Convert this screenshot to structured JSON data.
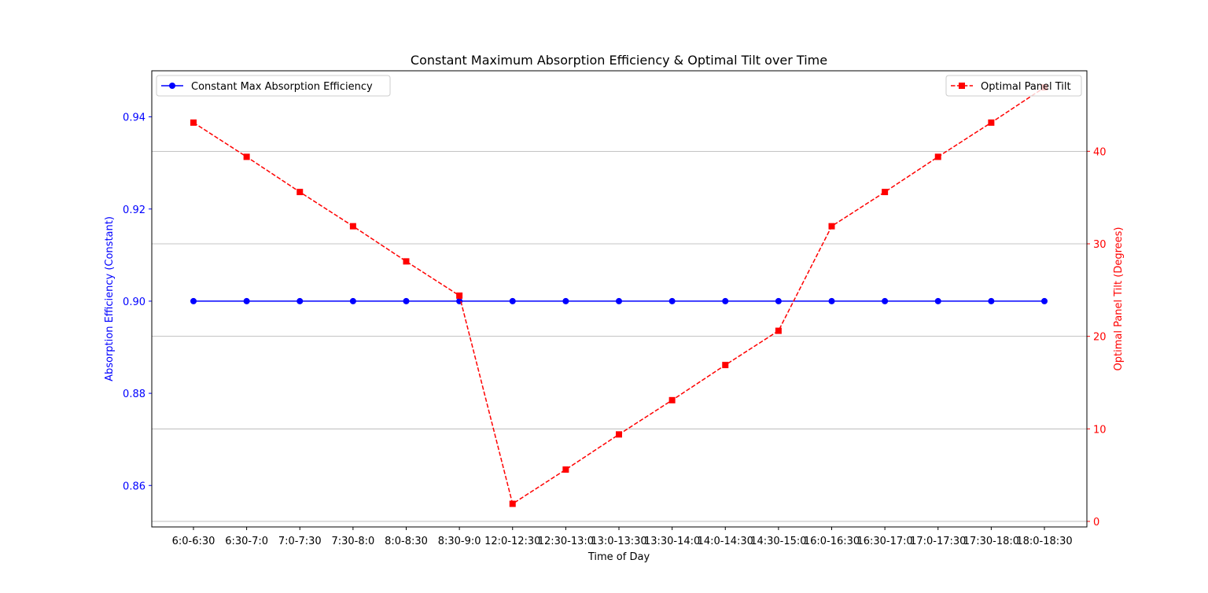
{
  "chart_data": {
    "type": "line",
    "title": "Constant Maximum Absorption Efficiency & Optimal Tilt over Time",
    "xlabel": "Time of Day",
    "categories": [
      "6:0-6:30",
      "6:30-7:0",
      "7:0-7:30",
      "7:30-8:0",
      "8:0-8:30",
      "8:30-9:0",
      "12:0-12:30",
      "12:30-13:0",
      "13:0-13:30",
      "13:30-14:0",
      "14:0-14:30",
      "14:30-15:0",
      "16:0-16:30",
      "16:30-17:0",
      "17:0-17:30",
      "17:30-18:0",
      "18:0-18:30"
    ],
    "y_left": {
      "label": "Absorption Efficiency (Constant)",
      "lim": [
        0.851,
        0.95
      ],
      "ticks": [
        0.86,
        0.88,
        0.9,
        0.92,
        0.94
      ],
      "tick_labels": [
        "0.86",
        "0.88",
        "0.90",
        "0.92",
        "0.94"
      ],
      "color": "#0000ff"
    },
    "y_right": {
      "label": "Optimal Panel Tilt (Degrees)",
      "lim": [
        -0.6,
        48.7
      ],
      "ticks": [
        0,
        10,
        20,
        30,
        40
      ],
      "tick_labels": [
        "0",
        "10",
        "20",
        "30",
        "40"
      ],
      "color": "#ff0000"
    },
    "grid": "horizontal lines at right-axis ticks",
    "series": [
      {
        "name": "Constant Max Absorption Efficiency",
        "axis": "left",
        "color": "#0000ff",
        "line": "solid",
        "marker": "circle",
        "values": [
          0.9,
          0.9,
          0.9,
          0.9,
          0.9,
          0.9,
          0.9,
          0.9,
          0.9,
          0.9,
          0.9,
          0.9,
          0.9,
          0.9,
          0.9,
          0.9,
          0.9
        ]
      },
      {
        "name": "Optimal Panel Tilt",
        "axis": "right",
        "color": "#ff0000",
        "line": "dashed",
        "marker": "square",
        "values": [
          43.1,
          39.4,
          35.6,
          31.9,
          28.1,
          24.4,
          1.9,
          5.6,
          9.4,
          13.1,
          16.9,
          20.6,
          31.9,
          35.6,
          39.4,
          43.1,
          46.9
        ]
      }
    ],
    "legends": [
      {
        "position": "upper-left",
        "series": "Constant Max Absorption Efficiency"
      },
      {
        "position": "upper-right",
        "series": "Optimal Panel Tilt"
      }
    ]
  }
}
